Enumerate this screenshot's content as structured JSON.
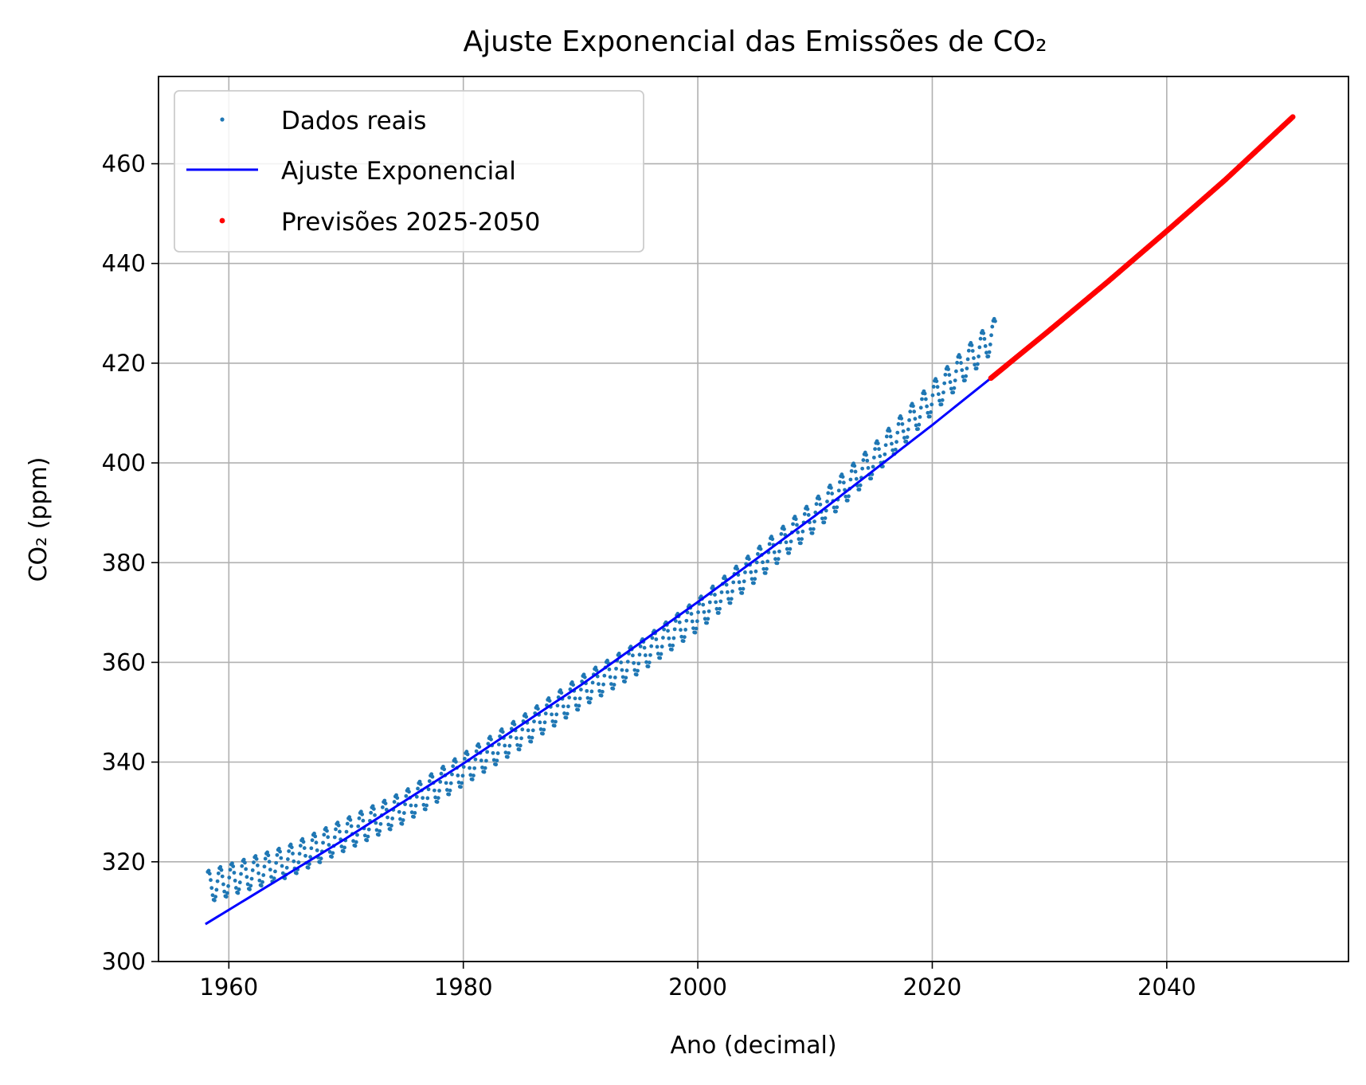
{
  "chart_data": {
    "type": "scatter",
    "title": "Ajuste Exponencial das Emissões de CO₂",
    "xlabel": "Ano (decimal)",
    "ylabel": "CO₂ (ppm)",
    "xlim": [
      1954.0,
      2055.5
    ],
    "ylim": [
      300,
      477.5
    ],
    "x_ticks": [
      1960,
      1980,
      2000,
      2020,
      2040
    ],
    "y_ticks": [
      300,
      320,
      340,
      360,
      380,
      400,
      420,
      440,
      460
    ],
    "grid": true,
    "legend_position": "top-left",
    "series": [
      {
        "name": "Dados reais",
        "kind": "points",
        "color": "#1f77b4",
        "description_trend": [
          [
            1958.2,
            315.0
          ],
          [
            1965,
            320.0
          ],
          [
            1970,
            325.5
          ],
          [
            1975,
            331.0
          ],
          [
            1980,
            338.5
          ],
          [
            1985,
            346.0
          ],
          [
            1990,
            354.0
          ],
          [
            1995,
            361.0
          ],
          [
            2000,
            369.5
          ],
          [
            2005,
            379.5
          ],
          [
            2010,
            389.5
          ],
          [
            2015,
            400.5
          ],
          [
            2020,
            413.0
          ],
          [
            2025.4,
            426.0
          ]
        ],
        "seasonal_amplitude": 3.2,
        "start": 1958.2,
        "end": 2025.4
      },
      {
        "name": "Ajuste Exponencial",
        "kind": "line",
        "color": "#0000ff",
        "x": [
          1958,
          1970,
          1980,
          1990,
          2000,
          2010,
          2020,
          2025
        ],
        "y": [
          307.5,
          324.7,
          339.7,
          355.4,
          372.1,
          389.4,
          407.6,
          417.0
        ]
      },
      {
        "name": "Previsões 2025-2050",
        "kind": "points",
        "color": "#ff0000",
        "x": [
          2025,
          2030,
          2035,
          2040,
          2045,
          2050.8
        ],
        "y": [
          417.0,
          426.6,
          436.4,
          446.5,
          456.8,
          469.5
        ]
      }
    ]
  }
}
